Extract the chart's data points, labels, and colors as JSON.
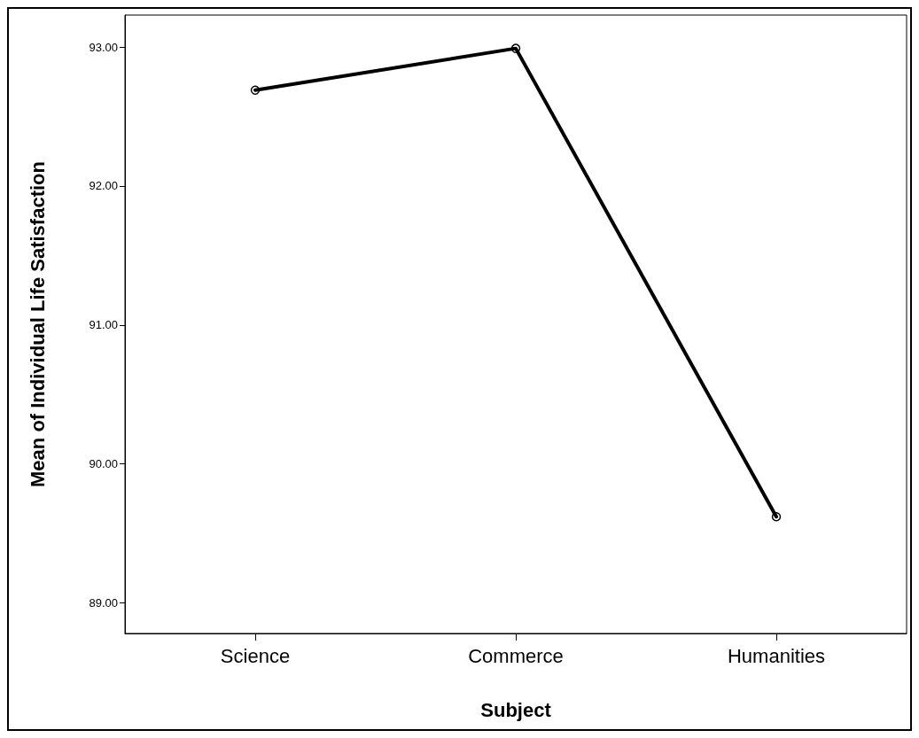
{
  "chart_data": {
    "type": "line",
    "xlabel": "Subject",
    "ylabel": "Mean of Individual Life Satisfaction",
    "categories": [
      "Science",
      "Commerce",
      "Humanities"
    ],
    "series": [
      {
        "color": "#000000",
        "values": [
          92.69,
          92.99,
          89.62
        ]
      }
    ],
    "ylim": [
      88.78,
      93.23
    ],
    "yticks": [
      {
        "value": 89,
        "label": "89.00"
      },
      {
        "value": 90,
        "label": "90.00"
      },
      {
        "value": 91,
        "label": "91.00"
      },
      {
        "value": 92,
        "label": "92.00"
      },
      {
        "value": 93,
        "label": "93.00"
      }
    ],
    "grid": false,
    "marker": "circle",
    "line_style": "solid"
  }
}
